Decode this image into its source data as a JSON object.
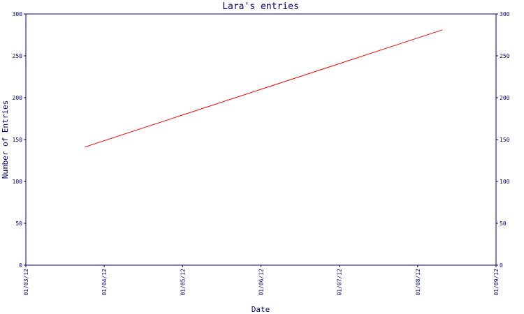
{
  "chart_data": {
    "type": "line",
    "title": "Lara's entries",
    "xlabel": "Date",
    "ylabel": "Number of Entries",
    "x_ticks": [
      "01/03/12",
      "01/04/12",
      "01/05/12",
      "01/06/12",
      "01/07/12",
      "01/08/12",
      "01/09/12"
    ],
    "xlim": [
      "2012-03-01",
      "2012-09-01"
    ],
    "ylim": [
      0,
      300
    ],
    "y_ticks": [
      0,
      50,
      100,
      150,
      200,
      250,
      300
    ],
    "y_axis_right": true,
    "grid": false,
    "series": [
      {
        "x": [
          "2012-03-24",
          "2012-08-11"
        ],
        "y": [
          141,
          281
        ]
      }
    ]
  },
  "colors": {
    "axis": "#000080",
    "line": "#ff0000",
    "background": "#ffffff"
  }
}
